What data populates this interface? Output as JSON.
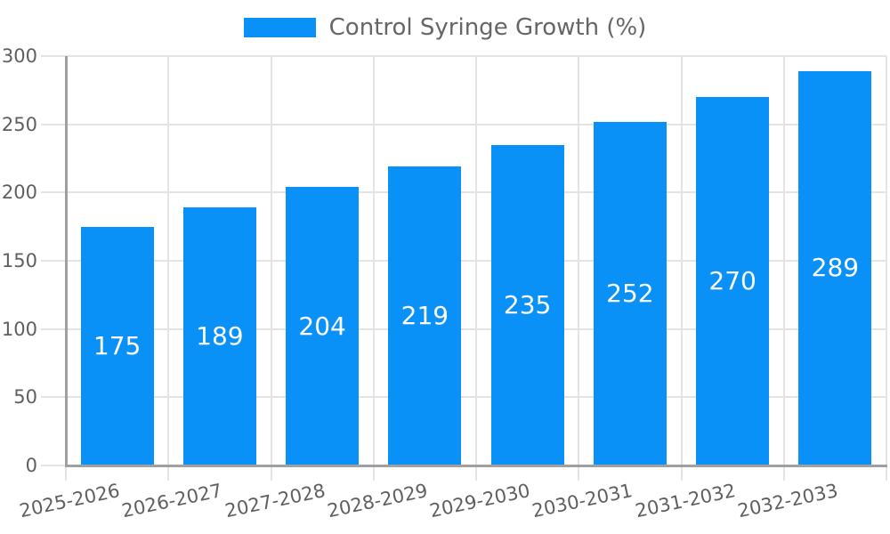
{
  "chart_data": {
    "type": "bar",
    "legend": "Control Syringe Growth (%)",
    "legend_position": "top",
    "categories": [
      "2025-2026",
      "2026-2027",
      "2027-2028",
      "2028-2029",
      "2029-2030",
      "2030-2031",
      "2031-2032",
      "2032-2033"
    ],
    "values": [
      175,
      189,
      204,
      219,
      235,
      252,
      270,
      289
    ],
    "bar_value_labels": [
      "175",
      "189",
      "204",
      "219",
      "235",
      "252",
      "270",
      "289"
    ],
    "ylim": [
      0,
      300
    ],
    "yticks": [
      0,
      50,
      100,
      150,
      200,
      250,
      300
    ],
    "grid": true,
    "xlabel": "",
    "ylabel": "",
    "title": "",
    "colors": {
      "bar": "#0a91f7",
      "bar_label": "#ffffff",
      "grid": "#e4e4e4",
      "axis": "#a0a0a0",
      "tick_text": "#5f5f5f",
      "legend_text": "#666666"
    }
  }
}
